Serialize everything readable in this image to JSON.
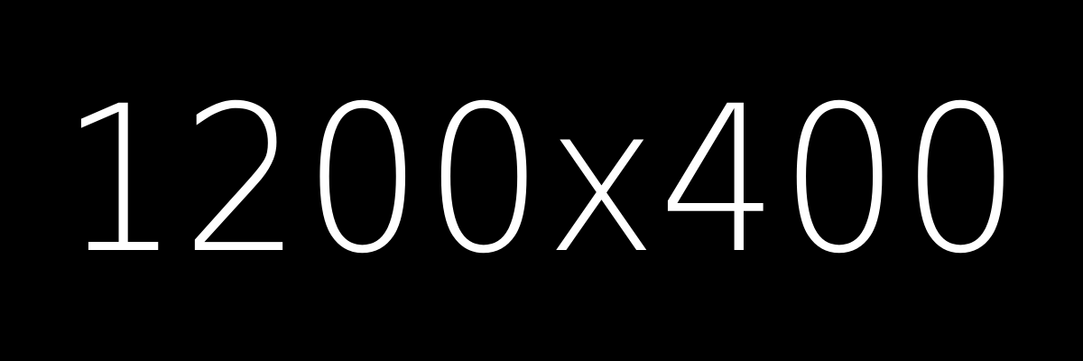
{
  "placeholder": {
    "label": "1200x400",
    "background_color": "#000000",
    "text_color": "#ffffff"
  }
}
